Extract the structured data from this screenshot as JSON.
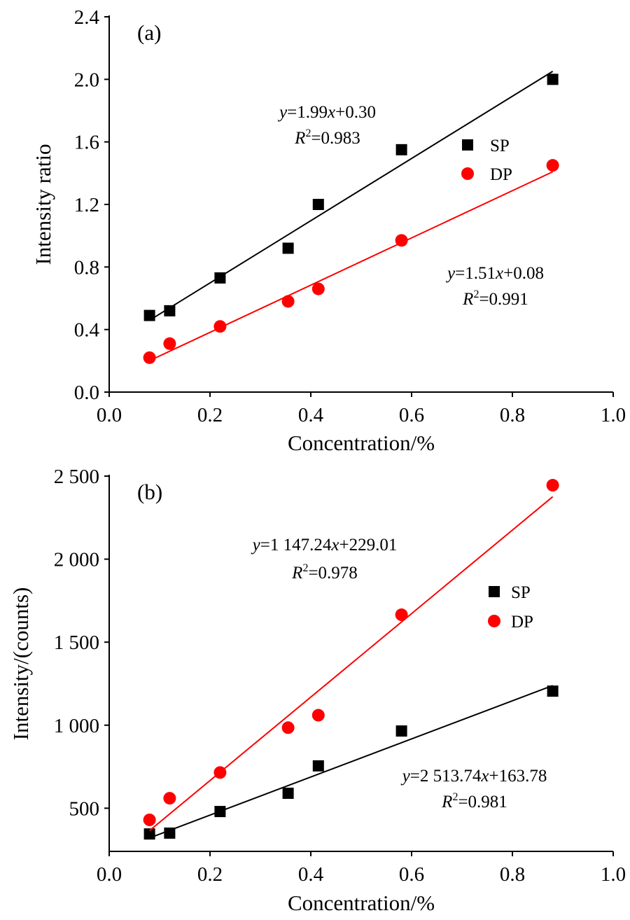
{
  "chart_data": [
    {
      "type": "scatter",
      "panel_label": "(a)",
      "xlabel": "Concentration/%",
      "ylabel": "Intensity ratio",
      "xlim": [
        0.0,
        1.0
      ],
      "ylim": [
        0.0,
        2.4
      ],
      "xticks": [
        0.0,
        0.2,
        0.4,
        0.6,
        0.8,
        1.0
      ],
      "xtick_labels": [
        "0.0",
        "0.2",
        "0.4",
        "0.6",
        "0.8",
        "1.0"
      ],
      "yticks": [
        0.0,
        0.4,
        0.8,
        1.2,
        1.6,
        2.0,
        2.4
      ],
      "ytick_labels": [
        "0.0",
        "0.4",
        "0.8",
        "1.2",
        "1.6",
        "2.0",
        "2.4"
      ],
      "legend_position": "right",
      "series": [
        {
          "name": "SP",
          "marker": "square",
          "color": "#000000",
          "x": [
            0.08,
            0.12,
            0.22,
            0.355,
            0.415,
            0.58,
            0.88
          ],
          "y": [
            0.49,
            0.52,
            0.73,
            0.92,
            1.2,
            1.55,
            2.0
          ],
          "fit": {
            "slope": 1.99,
            "intercept": 0.3
          },
          "equation": {
            "y": "y",
            "eq1": "=1.99",
            "x": "x",
            "eq2": "+0.30",
            "r_label": "R",
            "r_sup": "2",
            "r_value": "=0.983"
          }
        },
        {
          "name": "DP",
          "marker": "circle",
          "color": "#ff0000",
          "x": [
            0.08,
            0.12,
            0.22,
            0.355,
            0.415,
            0.58,
            0.88
          ],
          "y": [
            0.22,
            0.31,
            0.42,
            0.58,
            0.66,
            0.97,
            1.45
          ],
          "fit": {
            "slope": 1.51,
            "intercept": 0.08
          },
          "equation": {
            "y": "y",
            "eq1": "=1.51",
            "x": "x",
            "eq2": "+0.08",
            "r_label": "R",
            "r_sup": "2",
            "r_value": "=0.991"
          }
        }
      ]
    },
    {
      "type": "scatter",
      "panel_label": "(b)",
      "xlabel": "Concentration/%",
      "ylabel": "Intensity/(counts)",
      "xlim": [
        0.0,
        1.0
      ],
      "ylim": [
        240,
        2500
      ],
      "xticks": [
        0.0,
        0.2,
        0.4,
        0.6,
        0.8,
        1.0
      ],
      "xtick_labels": [
        "0.0",
        "0.2",
        "0.4",
        "0.6",
        "0.8",
        "1.0"
      ],
      "yticks": [
        500,
        1000,
        1500,
        2000,
        2500
      ],
      "ytick_labels": [
        "500",
        "1 000",
        "1 500",
        "2 000",
        "2 500"
      ],
      "legend_position": "right",
      "series": [
        {
          "name": "SP",
          "marker": "square",
          "color": "#000000",
          "x": [
            0.08,
            0.12,
            0.22,
            0.355,
            0.415,
            0.58,
            0.88
          ],
          "y": [
            345,
            350,
            480,
            590,
            755,
            965,
            1205
          ],
          "fit": {
            "slope": 1147.24,
            "intercept": 229.01
          },
          "equation": {
            "y": "y",
            "eq1": "=1 147.24",
            "x": "x",
            "eq2": "+229.01",
            "r_label": "R",
            "r_sup": "2",
            "r_value": "=0.978"
          }
        },
        {
          "name": "DP",
          "marker": "circle",
          "color": "#ff0000",
          "x": [
            0.08,
            0.12,
            0.22,
            0.355,
            0.415,
            0.58,
            0.88
          ],
          "y": [
            430,
            560,
            715,
            985,
            1060,
            1665,
            2445
          ],
          "fit": {
            "slope": 2513.74,
            "intercept": 163.78
          },
          "equation": {
            "y": "y",
            "eq1": "=2 513.74",
            "x": "x",
            "eq2": "+163.78",
            "r_label": "R",
            "r_sup": "2",
            "r_value": "=0.981"
          }
        }
      ]
    }
  ]
}
